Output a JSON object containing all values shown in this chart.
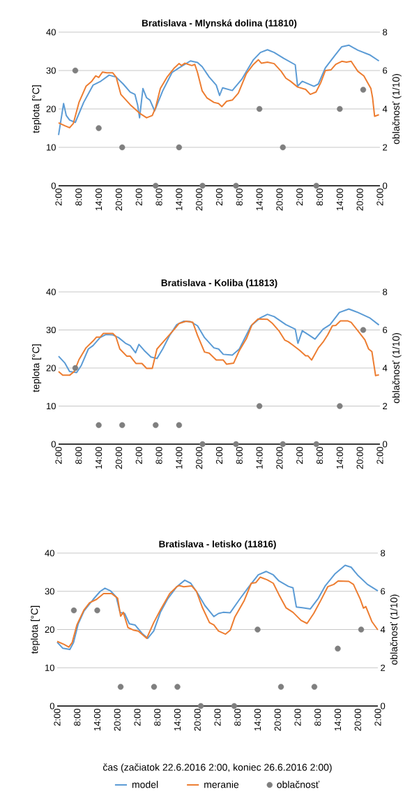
{
  "chart_data": [
    {
      "type": "line",
      "title": "Bratislava - Mlynská dolina (11810)",
      "ylabel": "teplota [°C]",
      "y2label": "oblačnosť (1/10)",
      "grid": "y",
      "xlim": [
        "2016-06-22T02:00",
        "2016-06-26T02:00"
      ],
      "xticks": [
        {
          "value": "2016-06-22T02:00",
          "label": "2:00"
        },
        {
          "value": "2016-06-22T08:00",
          "label": "8:00"
        },
        {
          "value": "2016-06-22T14:00",
          "label": "14:00"
        },
        {
          "value": "2016-06-22T20:00",
          "label": "20:00"
        },
        {
          "value": "2016-06-23T02:00",
          "label": "2:00"
        },
        {
          "value": "2016-06-23T08:00",
          "label": "8:00"
        },
        {
          "value": "2016-06-23T14:00",
          "label": "14:00"
        },
        {
          "value": "2016-06-23T20:00",
          "label": "20:00"
        },
        {
          "value": "2016-06-24T02:00",
          "label": "2:00"
        },
        {
          "value": "2016-06-24T08:00",
          "label": "8:00"
        },
        {
          "value": "2016-06-24T14:00",
          "label": "14:00"
        },
        {
          "value": "2016-06-24T20:00",
          "label": "20:00"
        },
        {
          "value": "2016-06-25T02:00",
          "label": "2:00"
        },
        {
          "value": "2016-06-25T08:00",
          "label": "8:00"
        },
        {
          "value": "2016-06-25T14:00",
          "label": "14:00"
        },
        {
          "value": "2016-06-25T20:00",
          "label": "20:00"
        },
        {
          "value": "2016-06-26T02:00",
          "label": "2:00"
        }
      ],
      "ylim": [
        0,
        40
      ],
      "yticks": [
        0,
        10,
        20,
        30,
        40
      ],
      "y2lim": [
        0,
        8
      ],
      "y2ticks": [
        0,
        2,
        4,
        6,
        8
      ],
      "series": [
        {
          "color": "#5b9bd5",
          "x": [
            "2016-06-22T02:00",
            "2016-06-22T03:30",
            "2016-06-22T04:18",
            "2016-06-22T05:18",
            "2016-06-22T07:00",
            "2016-06-22T09:30",
            "2016-06-22T12:18",
            "2016-06-22T14:24",
            "2016-06-22T17:06",
            "2016-06-22T19:12",
            "2016-06-22T21:18",
            "2016-06-22T23:24",
            "2016-06-23T00:48",
            "2016-06-23T01:36",
            "2016-06-23T02:12",
            "2016-06-23T03:12",
            "2016-06-23T04:18",
            "2016-06-23T05:18",
            "2016-06-23T06:42",
            "2016-06-23T09:06",
            "2016-06-23T11:54",
            "2016-06-23T14:00",
            "2016-06-23T17:24",
            "2016-06-23T19:30",
            "2016-06-23T20:54",
            "2016-06-23T23:00",
            "2016-06-24T01:06",
            "2016-06-24T02:06",
            "2016-06-24T03:00",
            "2016-06-24T05:54",
            "2016-06-24T08:42",
            "2016-06-24T12:12",
            "2016-06-24T14:18",
            "2016-06-24T16:24",
            "2016-06-24T18:24",
            "2016-06-24T21:12",
            "2016-06-25T00:42",
            "2016-06-25T01:24",
            "2016-06-25T02:48",
            "2016-06-25T06:18",
            "2016-06-25T07:36",
            "2016-06-25T09:42",
            "2016-06-25T12:30",
            "2016-06-25T14:36",
            "2016-06-25T16:42",
            "2016-06-25T19:24",
            "2016-06-25T22:54",
            "2016-06-26T01:42"
          ],
          "values": [
            13.2,
            21.4,
            18.3,
            17.1,
            16.5,
            21.7,
            26.2,
            27.1,
            28.8,
            28.3,
            26.5,
            24.4,
            23.8,
            21.1,
            17.7,
            25.3,
            22.9,
            22.3,
            19.5,
            24.7,
            29.5,
            30.7,
            32.5,
            32.1,
            31,
            28.3,
            26.2,
            23.5,
            25.5,
            24.8,
            27.7,
            32.8,
            34.7,
            35.4,
            34.7,
            33.2,
            31.5,
            25.9,
            27.2,
            25.9,
            26.5,
            30.7,
            33.9,
            36.2,
            36.6,
            35.3,
            34.1,
            32.5
          ]
        },
        {
          "color": "#ed7d31",
          "x": [
            "2016-06-22T02:00",
            "2016-06-22T03:54",
            "2016-06-22T05:18",
            "2016-06-22T06:24",
            "2016-06-22T08:06",
            "2016-06-22T10:12",
            "2016-06-22T11:54",
            "2016-06-22T13:06",
            "2016-06-22T14:00",
            "2016-06-22T15:06",
            "2016-06-22T16:24",
            "2016-06-22T18:12",
            "2016-06-22T19:12",
            "2016-06-22T20:36",
            "2016-06-22T23:24",
            "2016-06-23T02:12",
            "2016-06-23T04:18",
            "2016-06-23T06:00",
            "2016-06-23T07:00",
            "2016-06-23T08:24",
            "2016-06-23T10:30",
            "2016-06-23T12:36",
            "2016-06-23T14:00",
            "2016-06-23T14:42",
            "2016-06-23T15:42",
            "2016-06-23T17:48",
            "2016-06-23T18:42",
            "2016-06-23T19:30",
            "2016-06-23T20:54",
            "2016-06-23T22:18",
            "2016-06-24T00:24",
            "2016-06-24T01:48",
            "2016-06-24T02:48",
            "2016-06-24T04:12",
            "2016-06-24T05:54",
            "2016-06-24T07:42",
            "2016-06-24T10:06",
            "2016-06-24T12:12",
            "2016-06-24T13:42",
            "2016-06-24T14:36",
            "2016-06-24T16:24",
            "2016-06-24T18:24",
            "2016-06-24T20:30",
            "2016-06-24T21:54",
            "2016-06-24T23:18",
            "2016-06-25T01:24",
            "2016-06-25T03:48",
            "2016-06-25T05:12",
            "2016-06-25T06:54",
            "2016-06-25T08:18",
            "2016-06-25T09:42",
            "2016-06-25T11:24",
            "2016-06-25T12:48",
            "2016-06-25T14:36",
            "2016-06-25T16:00",
            "2016-06-25T17:24",
            "2016-06-25T19:24",
            "2016-06-25T21:12",
            "2016-06-25T23:18",
            "2016-06-25T23:48",
            "2016-06-26T00:24",
            "2016-06-26T01:42"
          ],
          "values": [
            16.4,
            15.6,
            15.1,
            16.2,
            21.7,
            25.9,
            27.2,
            28.6,
            28.2,
            29.6,
            29.4,
            29.4,
            28.3,
            23.8,
            21.1,
            18.9,
            17.7,
            18.3,
            20.4,
            25.3,
            28.4,
            30.7,
            31.8,
            31.3,
            31.9,
            31.3,
            31.6,
            29.5,
            24.7,
            22.9,
            21.7,
            21.4,
            20.6,
            22,
            22.3,
            24.1,
            29.2,
            31.6,
            32.8,
            31.9,
            32.2,
            31.8,
            29.8,
            28,
            27.2,
            25.7,
            25.1,
            23.8,
            24.4,
            26.8,
            30,
            30.2,
            31.6,
            32.4,
            32.2,
            32.4,
            29.8,
            28.6,
            25.3,
            22.9,
            18.1,
            18.5
          ]
        },
        {
          "type": "scatter",
          "axis": "y2",
          "color": "#7f7f7f",
          "x": [
            "2016-06-22T07:00",
            "2016-06-22T14:00",
            "2016-06-22T21:00",
            "2016-06-23T07:00",
            "2016-06-23T14:00",
            "2016-06-23T21:00",
            "2016-06-24T07:00",
            "2016-06-24T14:00",
            "2016-06-24T21:00",
            "2016-06-25T07:00",
            "2016-06-25T14:00",
            "2016-06-25T21:00"
          ],
          "values": [
            6,
            3,
            2,
            0,
            2,
            0,
            0,
            4,
            2,
            0,
            4,
            5
          ]
        }
      ]
    },
    {
      "type": "line",
      "title": "Bratislava - Koliba (11813)",
      "ylabel": "teplota [°C]",
      "y2label": "oblačnosť (1/10)",
      "grid": "y",
      "xlim": [
        "2016-06-22T02:00",
        "2016-06-26T02:00"
      ],
      "xticks": [
        {
          "value": "2016-06-22T02:00",
          "label": "2:00"
        },
        {
          "value": "2016-06-22T08:00",
          "label": "8:00"
        },
        {
          "value": "2016-06-22T14:00",
          "label": "14:00"
        },
        {
          "value": "2016-06-22T20:00",
          "label": "20:00"
        },
        {
          "value": "2016-06-23T02:00",
          "label": "2:00"
        },
        {
          "value": "2016-06-23T08:00",
          "label": "8:00"
        },
        {
          "value": "2016-06-23T14:00",
          "label": "14:00"
        },
        {
          "value": "2016-06-23T20:00",
          "label": "20:00"
        },
        {
          "value": "2016-06-24T02:00",
          "label": "2:00"
        },
        {
          "value": "2016-06-24T08:00",
          "label": "8:00"
        },
        {
          "value": "2016-06-24T14:00",
          "label": "14:00"
        },
        {
          "value": "2016-06-24T20:00",
          "label": "20:00"
        },
        {
          "value": "2016-06-25T02:00",
          "label": "2:00"
        },
        {
          "value": "2016-06-25T08:00",
          "label": "8:00"
        },
        {
          "value": "2016-06-25T14:00",
          "label": "14:00"
        },
        {
          "value": "2016-06-25T20:00",
          "label": "20:00"
        },
        {
          "value": "2016-06-26T02:00",
          "label": "2:00"
        }
      ],
      "ylim": [
        0,
        40
      ],
      "yticks": [
        0,
        10,
        20,
        30,
        40
      ],
      "y2lim": [
        0,
        8
      ],
      "y2ticks": [
        0,
        2,
        4,
        6,
        8
      ],
      "series": [
        {
          "color": "#5b9bd5",
          "x": [
            "2016-06-22T02:00",
            "2016-06-22T03:54",
            "2016-06-22T05:18",
            "2016-06-22T07:24",
            "2016-06-22T08:48",
            "2016-06-22T10:54",
            "2016-06-22T12:18",
            "2016-06-22T14:24",
            "2016-06-22T16:06",
            "2016-06-22T18:12",
            "2016-06-22T19:54",
            "2016-06-22T22:00",
            "2016-06-22T23:24",
            "2016-06-23T01:00",
            "2016-06-23T02:00",
            "2016-06-23T03:36",
            "2016-06-23T05:36",
            "2016-06-23T07:24",
            "2016-06-23T09:06",
            "2016-06-23T11:12",
            "2016-06-23T13:18",
            "2016-06-23T15:24",
            "2016-06-23T17:24",
            "2016-06-23T19:30",
            "2016-06-23T21:36",
            "2016-06-24T00:24",
            "2016-06-24T01:48",
            "2016-06-24T03:12",
            "2016-06-24T05:54",
            "2016-06-24T08:00",
            "2016-06-24T11:30",
            "2016-06-24T14:18",
            "2016-06-24T16:24",
            "2016-06-24T18:24",
            "2016-06-24T21:54",
            "2016-06-25T00:42",
            "2016-06-25T01:30",
            "2016-06-25T02:48",
            "2016-06-25T04:54",
            "2016-06-25T06:36",
            "2016-06-25T09:00",
            "2016-06-25T11:06",
            "2016-06-25T13:54",
            "2016-06-25T16:42",
            "2016-06-25T19:24",
            "2016-06-25T22:54",
            "2016-06-26T01:42"
          ],
          "values": [
            23.1,
            21.3,
            19.1,
            18.8,
            20.7,
            25,
            25.9,
            28,
            28.8,
            28.7,
            28,
            26.5,
            25.9,
            24,
            26.2,
            24.6,
            22.9,
            22.5,
            25,
            28.6,
            31.4,
            32.3,
            32.2,
            31.1,
            28,
            25.3,
            25,
            23.6,
            23.4,
            25,
            31.1,
            33.2,
            34.1,
            33.5,
            31.4,
            30.2,
            26.5,
            29.8,
            28.6,
            27.6,
            30.2,
            31.4,
            34.6,
            35.5,
            34.6,
            33.2,
            31.3
          ]
        },
        {
          "color": "#ed7d31",
          "x": [
            "2016-06-22T02:00",
            "2016-06-22T03:15",
            "2016-06-22T05:18",
            "2016-06-22T06:42",
            "2016-06-22T08:06",
            "2016-06-22T10:12",
            "2016-06-22T12:18",
            "2016-06-22T13:18",
            "2016-06-22T14:24",
            "2016-06-22T15:24",
            "2016-06-22T18:12",
            "2016-06-22T19:06",
            "2016-06-22T20:18",
            "2016-06-22T22:24",
            "2016-06-22T23:24",
            "2016-06-23T01:06",
            "2016-06-23T02:54",
            "2016-06-23T04:18",
            "2016-06-23T06:00",
            "2016-06-23T07:24",
            "2016-06-23T09:48",
            "2016-06-23T12:36",
            "2016-06-23T14:00",
            "2016-06-23T16:06",
            "2016-06-23T18:06",
            "2016-06-23T19:30",
            "2016-06-23T21:36",
            "2016-06-23T23:00",
            "2016-06-24T01:06",
            "2016-06-24T03:12",
            "2016-06-24T04:12",
            "2016-06-24T06:18",
            "2016-06-24T08:00",
            "2016-06-24T10:06",
            "2016-06-24T11:48",
            "2016-06-24T13:36",
            "2016-06-24T16:24",
            "2016-06-24T17:48",
            "2016-06-24T19:48",
            "2016-06-24T21:36",
            "2016-06-24T22:36",
            "2016-06-25T00:00",
            "2016-06-25T02:06",
            "2016-06-25T03:48",
            "2016-06-25T04:30",
            "2016-06-25T05:36",
            "2016-06-25T07:36",
            "2016-06-25T09:00",
            "2016-06-25T10:24",
            "2016-06-25T11:48",
            "2016-06-25T12:48",
            "2016-06-25T14:12",
            "2016-06-25T16:18",
            "2016-06-25T17:24",
            "2016-06-25T19:24",
            "2016-06-25T21:30",
            "2016-06-25T22:36",
            "2016-06-25T23:36",
            "2016-06-26T00:42",
            "2016-06-26T01:42"
          ],
          "values": [
            19.1,
            18.1,
            18.1,
            19.1,
            22.2,
            25.3,
            27.1,
            28.1,
            28.1,
            29.1,
            29.1,
            28.3,
            25,
            23.1,
            23.1,
            21.2,
            21.2,
            19.9,
            19.9,
            25,
            27.4,
            30.2,
            31.7,
            32.3,
            32,
            28.6,
            24.2,
            23.9,
            22.1,
            22.1,
            21,
            21.3,
            24.6,
            27.7,
            31.4,
            32.9,
            32.8,
            31.8,
            29.8,
            27.3,
            26.9,
            26,
            24.6,
            23.2,
            23.2,
            22.1,
            25.3,
            26.8,
            28.7,
            31.1,
            31.2,
            32.4,
            32.4,
            32,
            29.8,
            27.4,
            25,
            24.3,
            18,
            18.2
          ]
        },
        {
          "type": "scatter",
          "axis": "y2",
          "color": "#7f7f7f",
          "x": [
            "2016-06-22T07:00",
            "2016-06-22T14:00",
            "2016-06-22T21:00",
            "2016-06-23T07:00",
            "2016-06-23T14:00",
            "2016-06-23T21:00",
            "2016-06-24T07:00",
            "2016-06-24T14:00",
            "2016-06-24T21:00",
            "2016-06-25T07:00",
            "2016-06-25T14:00",
            "2016-06-25T21:00"
          ],
          "values": [
            4,
            1,
            1,
            1,
            1,
            0,
            0,
            2,
            0,
            0,
            2,
            6
          ]
        }
      ]
    },
    {
      "type": "line",
      "title": "Bratislava - letisko (11816)",
      "xlabel": "čas (začiatok 22.6.2016 2:00, koniec 26.6.2016 2:00)",
      "ylabel": "teplota [°C]",
      "y2label": "oblačnosť (1/10)",
      "grid": "y",
      "legend": "bottom",
      "xlim": [
        "2016-06-22T02:00",
        "2016-06-26T02:00"
      ],
      "xticks": [
        {
          "value": "2016-06-22T02:00",
          "label": "2:00"
        },
        {
          "value": "2016-06-22T08:00",
          "label": "8:00"
        },
        {
          "value": "2016-06-22T14:00",
          "label": "14:00"
        },
        {
          "value": "2016-06-22T20:00",
          "label": "20:00"
        },
        {
          "value": "2016-06-23T02:00",
          "label": "2:00"
        },
        {
          "value": "2016-06-23T08:00",
          "label": "8:00"
        },
        {
          "value": "2016-06-23T14:00",
          "label": "14:00"
        },
        {
          "value": "2016-06-23T20:00",
          "label": "20:00"
        },
        {
          "value": "2016-06-24T02:00",
          "label": "2:00"
        },
        {
          "value": "2016-06-24T08:00",
          "label": "8:00"
        },
        {
          "value": "2016-06-24T14:00",
          "label": "14:00"
        },
        {
          "value": "2016-06-24T20:00",
          "label": "20:00"
        },
        {
          "value": "2016-06-25T02:00",
          "label": "2:00"
        },
        {
          "value": "2016-06-25T08:00",
          "label": "8:00"
        },
        {
          "value": "2016-06-25T14:00",
          "label": "14:00"
        },
        {
          "value": "2016-06-25T20:00",
          "label": "20:00"
        },
        {
          "value": "2016-06-26T02:00",
          "label": "2:00"
        }
      ],
      "ylim": [
        0,
        40
      ],
      "yticks": [
        0,
        10,
        20,
        30,
        40
      ],
      "y2lim": [
        0,
        8
      ],
      "y2ticks": [
        0,
        2,
        4,
        6,
        8
      ],
      "series": [
        {
          "name": "model",
          "color": "#5b9bd5",
          "x": [
            "2016-06-22T02:00",
            "2016-06-22T03:42",
            "2016-06-22T05:48",
            "2016-06-22T06:54",
            "2016-06-22T08:18",
            "2016-06-22T10:00",
            "2016-06-22T12:48",
            "2016-06-22T14:54",
            "2016-06-22T16:18",
            "2016-06-22T18:00",
            "2016-06-22T19:42",
            "2016-06-22T20:48",
            "2016-06-22T22:12",
            "2016-06-22T23:36",
            "2016-06-23T01:18",
            "2016-06-23T03:24",
            "2016-06-23T05:06",
            "2016-06-23T06:54",
            "2016-06-23T08:54",
            "2016-06-23T11:00",
            "2016-06-23T13:48",
            "2016-06-23T16:12",
            "2016-06-23T18:00",
            "2016-06-23T20:06",
            "2016-06-23T22:12",
            "2016-06-24T00:54",
            "2016-06-24T02:18",
            "2016-06-24T03:42",
            "2016-06-24T05:48",
            "2016-06-24T08:36",
            "2016-06-24T11:24",
            "2016-06-24T14:12",
            "2016-06-24T16:36",
            "2016-06-24T18:42",
            "2016-06-24T20:24",
            "2016-06-24T23:12",
            "2016-06-25T00:36",
            "2016-06-25T01:36",
            "2016-06-25T03:24",
            "2016-06-25T05:48",
            "2016-06-25T08:12",
            "2016-06-25T10:18",
            "2016-06-25T13:06",
            "2016-06-25T16:12",
            "2016-06-25T18:00",
            "2016-06-25T20:06",
            "2016-06-25T22:54",
            "2016-06-26T02:00"
          ],
          "values": [
            16.7,
            15.1,
            14.8,
            16.6,
            21.5,
            24.8,
            27.9,
            30,
            30.8,
            30.1,
            28.5,
            24.5,
            24.2,
            21.5,
            21.2,
            19,
            17.7,
            19.6,
            24.5,
            27.9,
            31.2,
            32.9,
            32.1,
            29.4,
            26.3,
            23.4,
            24.2,
            24.5,
            24.4,
            27.9,
            31.2,
            34.3,
            35.2,
            34.3,
            32.7,
            31.3,
            30.9,
            25.9,
            25.7,
            25.4,
            28.2,
            31.5,
            34.5,
            36.8,
            36.3,
            34.1,
            31.8,
            30.1
          ]
        },
        {
          "name": "meranie",
          "color": "#ed7d31",
          "x": [
            "2016-06-22T02:00",
            "2016-06-22T04:06",
            "2016-06-22T05:30",
            "2016-06-22T06:30",
            "2016-06-22T07:54",
            "2016-06-22T10:00",
            "2016-06-22T11:42",
            "2016-06-22T13:48",
            "2016-06-22T15:54",
            "2016-06-22T18:18",
            "2016-06-22T20:06",
            "2016-06-22T21:00",
            "2016-06-22T21:48",
            "2016-06-22T23:12",
            "2016-06-23T01:00",
            "2016-06-23T02:18",
            "2016-06-23T04:48",
            "2016-06-23T06:54",
            "2016-06-23T08:54",
            "2016-06-23T11:42",
            "2016-06-23T13:48",
            "2016-06-23T14:30",
            "2016-06-23T15:54",
            "2016-06-23T18:18",
            "2016-06-23T19:42",
            "2016-06-23T21:30",
            "2016-06-23T23:36",
            "2016-06-24T00:54",
            "2016-06-24T02:18",
            "2016-06-24T04:24",
            "2016-06-24T05:48",
            "2016-06-24T07:12",
            "2016-06-24T10:00",
            "2016-06-24T12:06",
            "2016-06-24T13:30",
            "2016-06-24T14:48",
            "2016-06-24T16:54",
            "2016-06-24T18:42",
            "2016-06-24T20:24",
            "2016-06-24T22:30",
            "2016-06-25T00:36",
            "2016-06-25T03:00",
            "2016-06-25T04:48",
            "2016-06-25T06:48",
            "2016-06-25T08:54",
            "2016-06-25T11:00",
            "2016-06-25T12:48",
            "2016-06-25T14:06",
            "2016-06-25T17:18",
            "2016-06-25T18:42",
            "2016-06-25T20:42",
            "2016-06-25T21:42",
            "2016-06-25T22:24",
            "2016-06-26T00:12",
            "2016-06-26T02:00"
          ],
          "values": [
            16.9,
            16.1,
            15.4,
            16.6,
            21.2,
            25.1,
            27,
            27.9,
            29.4,
            29.4,
            28.2,
            23.5,
            24.5,
            20.5,
            19.8,
            19.6,
            17.7,
            21.8,
            25.1,
            29.4,
            31.2,
            31.5,
            31.2,
            31.4,
            30,
            25.7,
            21.8,
            21.2,
            19.6,
            18.8,
            19.8,
            23.3,
            27.6,
            32.1,
            32.3,
            33.7,
            33,
            32.1,
            29.1,
            25.7,
            24.5,
            22.4,
            21.6,
            24.2,
            27.6,
            31.2,
            31.8,
            32.7,
            32.6,
            31.8,
            28,
            25.6,
            26,
            22.1,
            19.9
          ]
        },
        {
          "name": "oblačnosť",
          "type": "scatter",
          "axis": "y2",
          "color": "#7f7f7f",
          "x": [
            "2016-06-22T07:00",
            "2016-06-22T14:00",
            "2016-06-22T21:00",
            "2016-06-23T07:00",
            "2016-06-23T14:00",
            "2016-06-23T21:00",
            "2016-06-24T07:00",
            "2016-06-24T14:00",
            "2016-06-24T21:00",
            "2016-06-25T07:00",
            "2016-06-25T14:00",
            "2016-06-25T21:00"
          ],
          "values": [
            5,
            5,
            1,
            1,
            1,
            0,
            0,
            4,
            1,
            1,
            3,
            4
          ]
        }
      ]
    }
  ]
}
